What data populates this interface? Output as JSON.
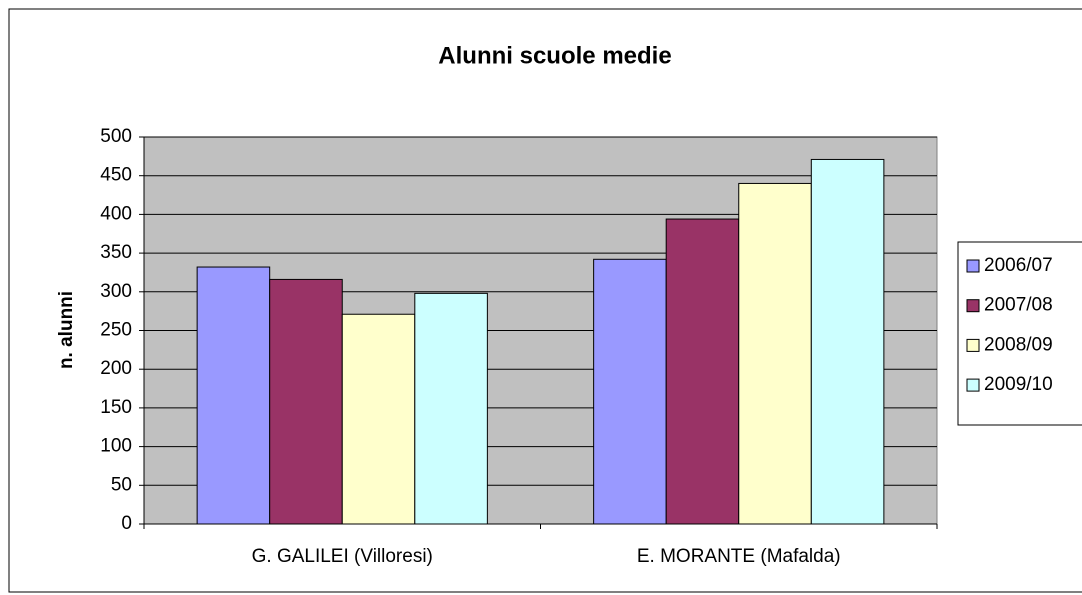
{
  "chart_data": {
    "type": "bar",
    "title": "Alunni scuole medie",
    "y_label": "n. alunni",
    "categories": [
      "G. GALILEI (Villoresi)",
      "E. MORANTE (Mafalda)"
    ],
    "series": [
      {
        "name": "2006/07",
        "color": "#9999ff",
        "values": [
          332,
          342
        ]
      },
      {
        "name": "2007/08",
        "color": "#993366",
        "values": [
          316,
          394
        ]
      },
      {
        "name": "2008/09",
        "color": "#ffffcc",
        "values": [
          271,
          440
        ]
      },
      {
        "name": "2009/10",
        "color": "#ccffff",
        "values": [
          298,
          471
        ]
      }
    ],
    "ylim": [
      0,
      500
    ],
    "yticks": [
      0,
      50,
      100,
      150,
      200,
      250,
      300,
      350,
      400,
      450,
      500
    ],
    "grid": true,
    "legend": "right",
    "plot_background": "#c0c0c0"
  }
}
